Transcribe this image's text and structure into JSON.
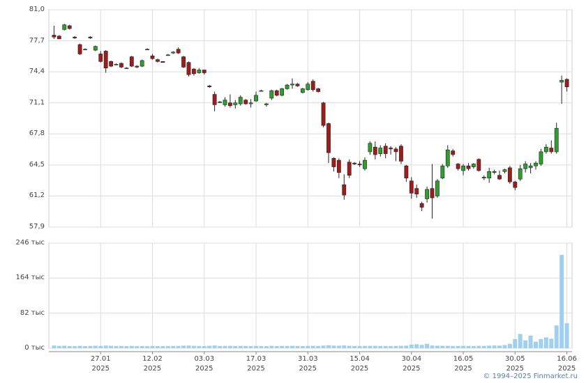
{
  "credit": "© 1994–2025 Finmarket.ru",
  "chart_data": [
    {
      "type": "candlestick",
      "up_color": "#2e9e2e",
      "down_color": "#9e1c1c",
      "grid": true,
      "xlim": [
        -1,
        100
      ],
      "ylim": [
        57.9,
        81.0
      ],
      "yticks": [
        {
          "value": 57.9,
          "label": "57,9"
        },
        {
          "value": 61.2,
          "label": "61,2"
        },
        {
          "value": 64.5,
          "label": "64,5"
        },
        {
          "value": 67.8,
          "label": "67,8"
        },
        {
          "value": 71.1,
          "label": "71,1"
        },
        {
          "value": 74.4,
          "label": "74,4"
        },
        {
          "value": 77.7,
          "label": "77,7"
        },
        {
          "value": 81.0,
          "label": "81,0"
        }
      ],
      "open": [
        78.3,
        78.2,
        78.9,
        79.3,
        78.1,
        77.3,
        76.8,
        78.1,
        76.7,
        76.3,
        76.6,
        75.5,
        75.2,
        75.3,
        74.8,
        76.0,
        75.0,
        75.0,
        76.8,
        76.1,
        75.7,
        75.5,
        76.2,
        76.4,
        76.8,
        76.0,
        75.4,
        74.7,
        74.3,
        74.6,
        72.9,
        72.0,
        71.2,
        70.9,
        71.1,
        70.9,
        71.0,
        71.4,
        71.0,
        71.3,
        72.4,
        70.9,
        71.6,
        72.4,
        71.9,
        72.6,
        73.0,
        73.1,
        72.2,
        72.5,
        73.4,
        72.6,
        71.1,
        68.9,
        65.2,
        65.0,
        62.4,
        64.8,
        64.7,
        64.6,
        64.1,
        65.9,
        66.4,
        65.7,
        66.5,
        66.3,
        66.2,
        66.5,
        64.4,
        62.8,
        62.0,
        60.4,
        60.9,
        62.0,
        61.2,
        63.1,
        64.4,
        66.0,
        64.6,
        63.9,
        64.4,
        64.3,
        65.1,
        63.1,
        63.1,
        63.7,
        63.4,
        63.8,
        64.2,
        62.7,
        63.0,
        64.1,
        64.2,
        64.4,
        64.6,
        65.9,
        66.3,
        65.9,
        73.3,
        73.6
      ],
      "high": [
        79.3,
        78.3,
        79.5,
        79.4,
        78.2,
        77.4,
        76.9,
        78.2,
        77.2,
        76.6,
        76.7,
        75.6,
        75.3,
        75.4,
        74.9,
        76.1,
        75.1,
        75.7,
        76.9,
        76.3,
        75.8,
        75.5,
        76.3,
        76.6,
        77.0,
        76.1,
        75.5,
        74.8,
        74.8,
        74.6,
        73.0,
        72.3,
        71.3,
        71.7,
        72.0,
        71.4,
        71.9,
        71.5,
        71.5,
        72.3,
        72.5,
        71.1,
        72.5,
        72.5,
        72.7,
        73.1,
        73.7,
        73.2,
        72.7,
        73.3,
        73.6,
        72.7,
        71.2,
        69.0,
        65.3,
        65.2,
        63.5,
        65.1,
        64.8,
        64.9,
        65.3,
        67.0,
        67.0,
        66.6,
        66.8,
        66.5,
        66.4,
        66.7,
        64.5,
        63.2,
        62.4,
        60.6,
        62.2,
        64.6,
        63.0,
        64.6,
        66.6,
        66.2,
        64.7,
        64.6,
        64.7,
        64.7,
        65.2,
        63.4,
        64.2,
        64.0,
        63.9,
        64.1,
        64.4,
        62.8,
        64.5,
        64.9,
        64.7,
        64.9,
        66.2,
        66.7,
        67.1,
        69.0,
        74.0,
        73.7
      ],
      "low": [
        77.9,
        77.9,
        78.8,
        78.9,
        77.9,
        76.2,
        76.7,
        77.9,
        76.6,
        75.4,
        74.3,
        74.9,
        75.1,
        74.8,
        74.7,
        74.9,
        74.8,
        74.9,
        76.7,
        75.7,
        75.4,
        75.4,
        76.1,
        76.3,
        76.3,
        74.8,
        73.9,
        74.0,
        74.2,
        74.1,
        72.7,
        70.2,
        71.1,
        70.7,
        70.6,
        70.5,
        70.8,
        70.9,
        70.6,
        71.2,
        72.3,
        70.7,
        71.4,
        71.8,
        71.8,
        72.5,
        72.6,
        72.8,
        72.1,
        72.4,
        72.3,
        72.2,
        68.5,
        64.7,
        63.8,
        63.1,
        60.8,
        63.1,
        64.5,
        64.3,
        63.9,
        65.6,
        65.1,
        65.4,
        65.2,
        65.6,
        64.9,
        64.6,
        62.7,
        60.9,
        61.0,
        59.6,
        60.5,
        58.8,
        61.0,
        63.0,
        64.2,
        65.4,
        63.9,
        63.4,
        63.9,
        64.1,
        63.8,
        62.9,
        62.6,
        63.5,
        62.9,
        63.6,
        62.5,
        61.8,
        62.8,
        63.7,
        63.6,
        64.0,
        64.4,
        65.7,
        65.7,
        65.7,
        71.0,
        72.3
      ],
      "close": [
        78.1,
        77.9,
        79.4,
        79.0,
        78.0,
        76.3,
        76.8,
        78.0,
        77.1,
        75.5,
        74.8,
        75.0,
        75.2,
        74.9,
        74.8,
        75.0,
        74.9,
        75.6,
        76.8,
        75.8,
        75.5,
        75.4,
        76.2,
        76.5,
        76.4,
        74.9,
        74.1,
        74.2,
        74.6,
        74.3,
        72.8,
        70.9,
        71.2,
        71.4,
        70.8,
        71.1,
        71.7,
        71.0,
        71.1,
        71.9,
        72.4,
        71.0,
        72.4,
        71.9,
        72.6,
        73.0,
        73.1,
        72.9,
        72.6,
        73.1,
        72.5,
        72.3,
        68.7,
        65.8,
        64.3,
        63.7,
        61.3,
        63.4,
        64.6,
        64.5,
        65.0,
        66.8,
        65.6,
        66.3,
        65.7,
        66.2,
        65.9,
        64.9,
        63.1,
        61.5,
        61.4,
        60.0,
        61.9,
        61.0,
        62.8,
        64.4,
        66.1,
        65.6,
        64.1,
        64.4,
        64.1,
        64.6,
        63.9,
        63.2,
        63.8,
        63.8,
        63.0,
        64.0,
        62.7,
        62.1,
        64.1,
        64.6,
        64.4,
        64.7,
        65.9,
        66.4,
        65.9,
        68.4,
        73.5,
        72.8
      ]
    },
    {
      "type": "bar",
      "color": "#9fd0f0",
      "grid": true,
      "xlim": [
        -1,
        100
      ],
      "xticks": [
        {
          "value": 9,
          "label": "27.01\n2025"
        },
        {
          "value": 19,
          "label": "12.02\n2025"
        },
        {
          "value": 29,
          "label": "03.03\n2025"
        },
        {
          "value": 39,
          "label": "17.03\n2025"
        },
        {
          "value": 49,
          "label": "31.03\n2025"
        },
        {
          "value": 59,
          "label": "15.04\n2025"
        },
        {
          "value": 69,
          "label": "30.04\n2025"
        },
        {
          "value": 79,
          "label": "16.05\n2025"
        },
        {
          "value": 89,
          "label": "30.05\n2025"
        },
        {
          "value": 99,
          "label": "16.06\n2025"
        }
      ],
      "ylim": [
        0,
        246000
      ],
      "yticks": [
        {
          "value": 0,
          "label": "0 тыс"
        },
        {
          "value": 82000,
          "label": "82 тыс"
        },
        {
          "value": 164000,
          "label": "164 тыс"
        },
        {
          "value": 246000,
          "label": "246 тыс"
        }
      ],
      "values": [
        3000,
        2000,
        2500,
        1800,
        1500,
        2200,
        1600,
        1900,
        2400,
        2100,
        2800,
        2300,
        1700,
        1900,
        1500,
        2000,
        1600,
        1800,
        1400,
        2100,
        1700,
        1500,
        1600,
        1900,
        2000,
        2600,
        2900,
        2300,
        1800,
        1700,
        2400,
        3100,
        1900,
        2000,
        2200,
        1800,
        2100,
        1900,
        1700,
        2000,
        1600,
        1500,
        2200,
        1800,
        2000,
        2100,
        2300,
        1900,
        1700,
        2000,
        2200,
        1800,
        2900,
        3500,
        2800,
        2600,
        3200,
        2400,
        2000,
        1900,
        2100,
        2300,
        2200,
        1900,
        2000,
        1800,
        1900,
        2200,
        2600,
        5000,
        6000,
        4500,
        7000,
        3000,
        2500,
        2400,
        2200,
        2000,
        1900,
        2100,
        2000,
        1800,
        2200,
        2100,
        2600,
        3000,
        2800,
        4000,
        7000,
        18000,
        30000,
        15000,
        26000,
        12000,
        18000,
        22000,
        19000,
        50000,
        215000,
        55000
      ]
    }
  ]
}
